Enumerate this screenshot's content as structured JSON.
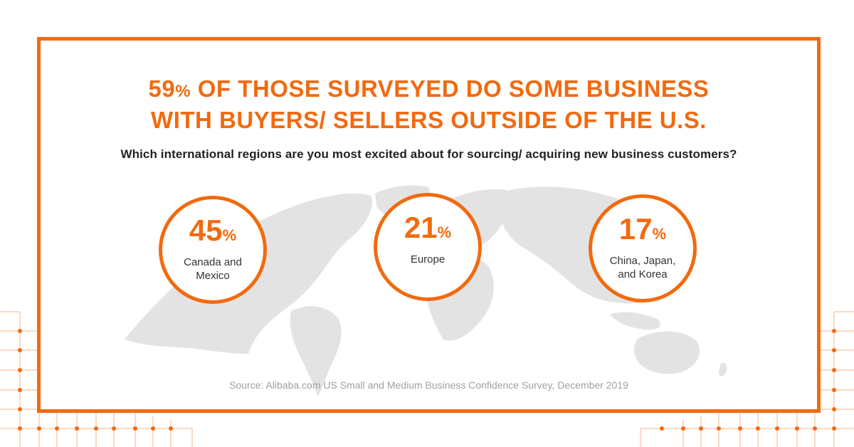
{
  "header": {
    "headline_pct_number": "59",
    "headline_pct_sign": "%",
    "headline_line1_rest": " OF THOSE SURVEYED DO SOME BUSINESS",
    "headline_line2": "WITH BUYERS/ SELLERS OUTSIDE OF THE U.S."
  },
  "question": "Which international regions are you most excited about for sourcing/ acquiring new business customers?",
  "stats": [
    {
      "value": "45",
      "unit": "%",
      "label": "Canada and Mexico"
    },
    {
      "value": "21",
      "unit": "%",
      "label": "Europe"
    },
    {
      "value": "17",
      "unit": "%",
      "label": "China, Japan, and Korea"
    }
  ],
  "source": "Source: Alibaba.com US Small and Medium Business Confidence Survey, December 2019",
  "colors": {
    "accent": "#f26a0f",
    "map": "#e3e3e3",
    "text": "#222222",
    "source_text": "#a0a0a0"
  },
  "icons": [
    "world-map",
    "circuit-decoration"
  ]
}
